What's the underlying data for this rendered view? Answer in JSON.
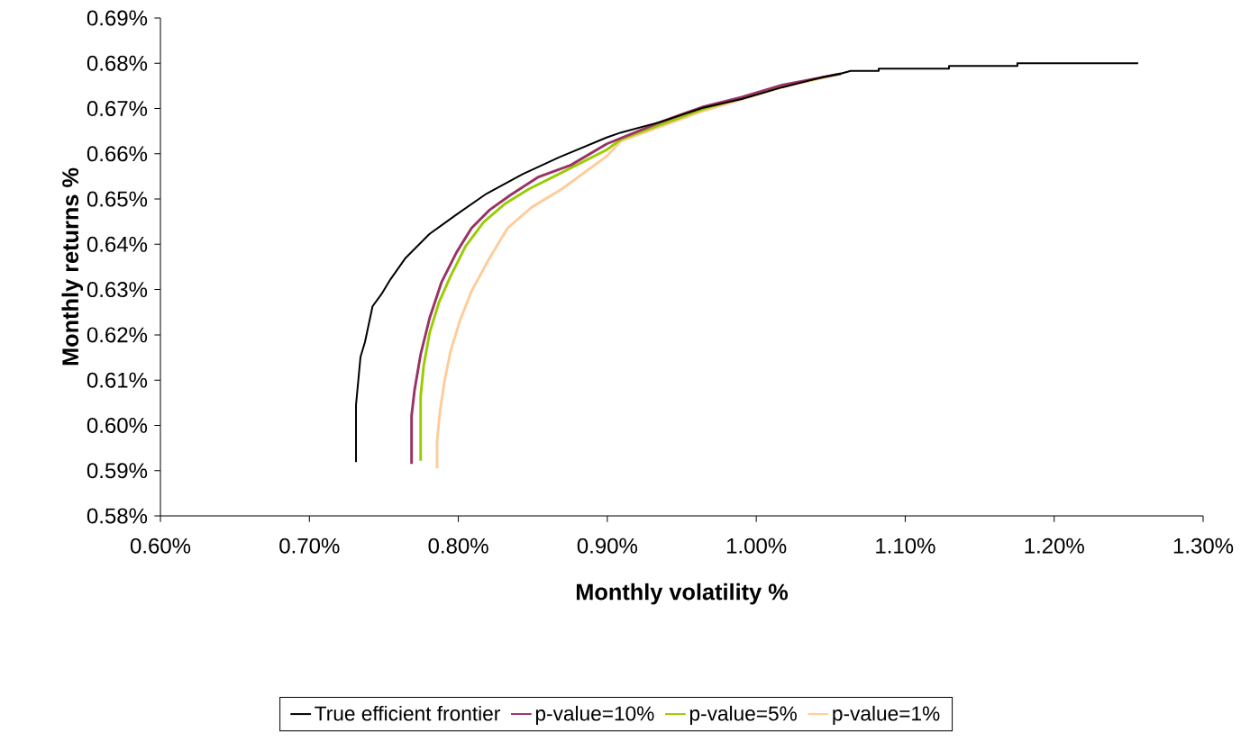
{
  "chart_data": {
    "type": "line",
    "xlabel": "Monthly volatility %",
    "ylabel": "Monthly returns %",
    "xlim": [
      0.6,
      1.3
    ],
    "ylim": [
      0.58,
      0.69
    ],
    "xticks": [
      {
        "value": 0.6,
        "label": "0.60%"
      },
      {
        "value": 0.7,
        "label": "0.70%"
      },
      {
        "value": 0.8,
        "label": "0.80%"
      },
      {
        "value": 0.9,
        "label": "0.90%"
      },
      {
        "value": 1.0,
        "label": "1.00%"
      },
      {
        "value": 1.1,
        "label": "1.10%"
      },
      {
        "value": 1.2,
        "label": "1.20%"
      },
      {
        "value": 1.3,
        "label": "1.30%"
      }
    ],
    "yticks": [
      {
        "value": 0.58,
        "label": "0.58%"
      },
      {
        "value": 0.59,
        "label": "0.59%"
      },
      {
        "value": 0.6,
        "label": "0.60%"
      },
      {
        "value": 0.61,
        "label": "0.61%"
      },
      {
        "value": 0.62,
        "label": "0.62%"
      },
      {
        "value": 0.63,
        "label": "0.63%"
      },
      {
        "value": 0.64,
        "label": "0.64%"
      },
      {
        "value": 0.65,
        "label": "0.65%"
      },
      {
        "value": 0.66,
        "label": "0.66%"
      },
      {
        "value": 0.67,
        "label": "0.67%"
      },
      {
        "value": 0.68,
        "label": "0.68%"
      },
      {
        "value": 0.69,
        "label": "0.69%"
      }
    ],
    "legend": "bottom",
    "series": [
      {
        "name": "True efficient frontier",
        "color": "#000000",
        "x": [
          0.7313,
          0.7313,
          0.7343,
          0.7373,
          0.7424,
          0.7484,
          0.7545,
          0.7646,
          0.7807,
          0.7989,
          0.819,
          0.8432,
          0.8674,
          0.8995,
          0.9092,
          0.9364,
          0.9636,
          0.9902,
          1.0175,
          1.0441,
          1.0568,
          1.0634,
          1.0822,
          1.0822,
          1.1294,
          1.1294,
          1.1753,
          1.1753,
          1.2564
        ],
        "values": [
          0.5919,
          0.6045,
          0.6151,
          0.6184,
          0.6263,
          0.629,
          0.6323,
          0.637,
          0.6423,
          0.6466,
          0.6512,
          0.6555,
          0.6592,
          0.6636,
          0.6647,
          0.6671,
          0.6701,
          0.6721,
          0.6747,
          0.6769,
          0.6777,
          0.6783,
          0.6783,
          0.6788,
          0.6788,
          0.6794,
          0.6794,
          0.68,
          0.68
        ]
      },
      {
        "name": "p-value=10%",
        "color": "#993366",
        "x": [
          0.7686,
          0.7686,
          0.7706,
          0.7747,
          0.7807,
          0.7888,
          0.7989,
          0.8089,
          0.821,
          0.8351,
          0.8533,
          0.8755,
          0.8997,
          0.9364,
          0.9636,
          0.9902,
          1.0175,
          1.0568
        ],
        "values": [
          0.5915,
          0.6021,
          0.6078,
          0.6157,
          0.6237,
          0.6317,
          0.6383,
          0.6436,
          0.6476,
          0.6509,
          0.6548,
          0.6575,
          0.6622,
          0.6671,
          0.6703,
          0.6725,
          0.6752,
          0.6777
        ]
      },
      {
        "name": "p-value=5%",
        "color": "#99cc00",
        "x": [
          0.7747,
          0.7747,
          0.7767,
          0.7807,
          0.7868,
          0.7948,
          0.8049,
          0.817,
          0.8311,
          0.8473,
          0.8674,
          0.8997,
          0.9092,
          0.9636,
          1.0175,
          1.0568
        ],
        "values": [
          0.5922,
          0.6065,
          0.6131,
          0.6204,
          0.627,
          0.633,
          0.6396,
          0.6449,
          0.6489,
          0.6522,
          0.6555,
          0.6609,
          0.6632,
          0.6698,
          0.675,
          0.6777
        ]
      },
      {
        "name": "p-value=1%",
        "color": "#ffcc99",
        "x": [
          0.7857,
          0.7857,
          0.7877,
          0.7907,
          0.7948,
          0.8009,
          0.8089,
          0.821,
          0.8331,
          0.8493,
          0.8694,
          0.8997,
          0.9092,
          0.9636,
          1.0175,
          1.0568
        ],
        "values": [
          0.5905,
          0.5965,
          0.6031,
          0.6098,
          0.6164,
          0.623,
          0.6297,
          0.637,
          0.6436,
          0.6482,
          0.6522,
          0.6595,
          0.6628,
          0.6694,
          0.6747,
          0.6777
        ]
      }
    ]
  }
}
